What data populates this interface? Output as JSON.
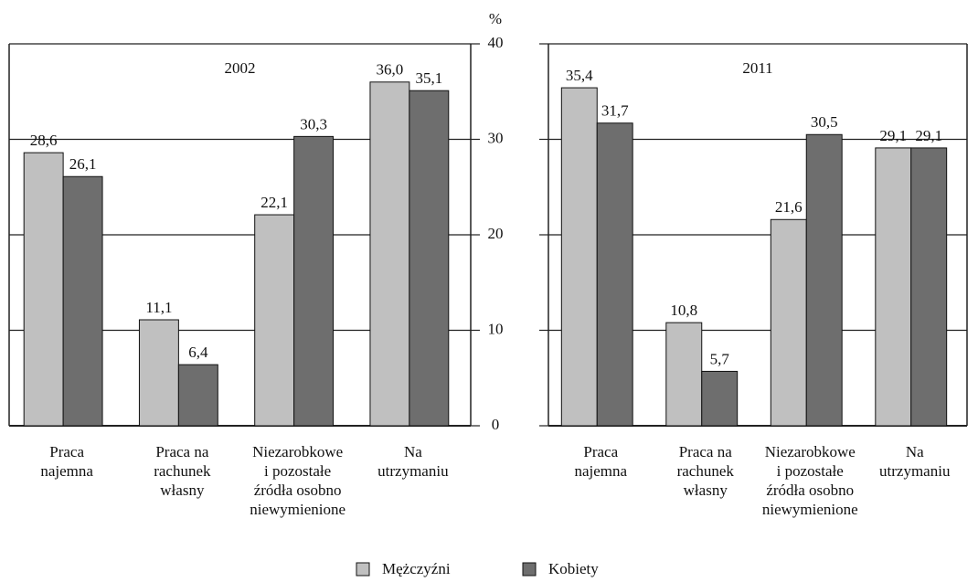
{
  "chart_data": [
    {
      "type": "bar",
      "title": "2002",
      "y_label": "%",
      "categories": [
        [
          "Praca",
          "najemna"
        ],
        [
          "Praca na",
          "rachunek",
          "własny"
        ],
        [
          "Niezarobkowe",
          "i pozostałe",
          "źródła osobno",
          "niewymienione"
        ],
        [
          "Na",
          "utrzymaniu"
        ]
      ],
      "series": [
        {
          "name": "Mężczyźni",
          "color": "#c0c0c0",
          "values": [
            28.6,
            11.1,
            22.1,
            36.0
          ],
          "value_labels": [
            "28,6",
            "11,1",
            "22,1",
            "36,0"
          ]
        },
        {
          "name": "Kobiety",
          "color": "#6e6e6e",
          "values": [
            26.1,
            6.4,
            30.3,
            35.1
          ],
          "value_labels": [
            "26,1",
            "6,4",
            "30,3",
            "35,1"
          ]
        }
      ],
      "ylim": [
        0,
        40
      ],
      "yticks": [
        0,
        10,
        20,
        30,
        40
      ],
      "grid": true,
      "legend": "bottom"
    },
    {
      "type": "bar",
      "title": "2011",
      "categories": [
        [
          "Praca",
          "najemna"
        ],
        [
          "Praca na",
          "rachunek",
          "własny"
        ],
        [
          "Niezarobkowe",
          "i pozostałe",
          "źródła osobno",
          "niewymienione"
        ],
        [
          "Na",
          "utrzymaniu"
        ]
      ],
      "series": [
        {
          "name": "Mężczyźni",
          "color": "#c0c0c0",
          "values": [
            35.4,
            10.8,
            21.6,
            29.1
          ],
          "value_labels": [
            "35,4",
            "10,8",
            "21,6",
            "29,1"
          ]
        },
        {
          "name": "Kobiety",
          "color": "#6e6e6e",
          "values": [
            31.7,
            5.7,
            30.5,
            29.1
          ],
          "value_labels": [
            "31,7",
            "5,7",
            "30,5",
            "29,1"
          ]
        }
      ],
      "ylim": [
        0,
        40
      ],
      "yticks": [
        0,
        10,
        20,
        30,
        40
      ],
      "grid": true
    }
  ]
}
